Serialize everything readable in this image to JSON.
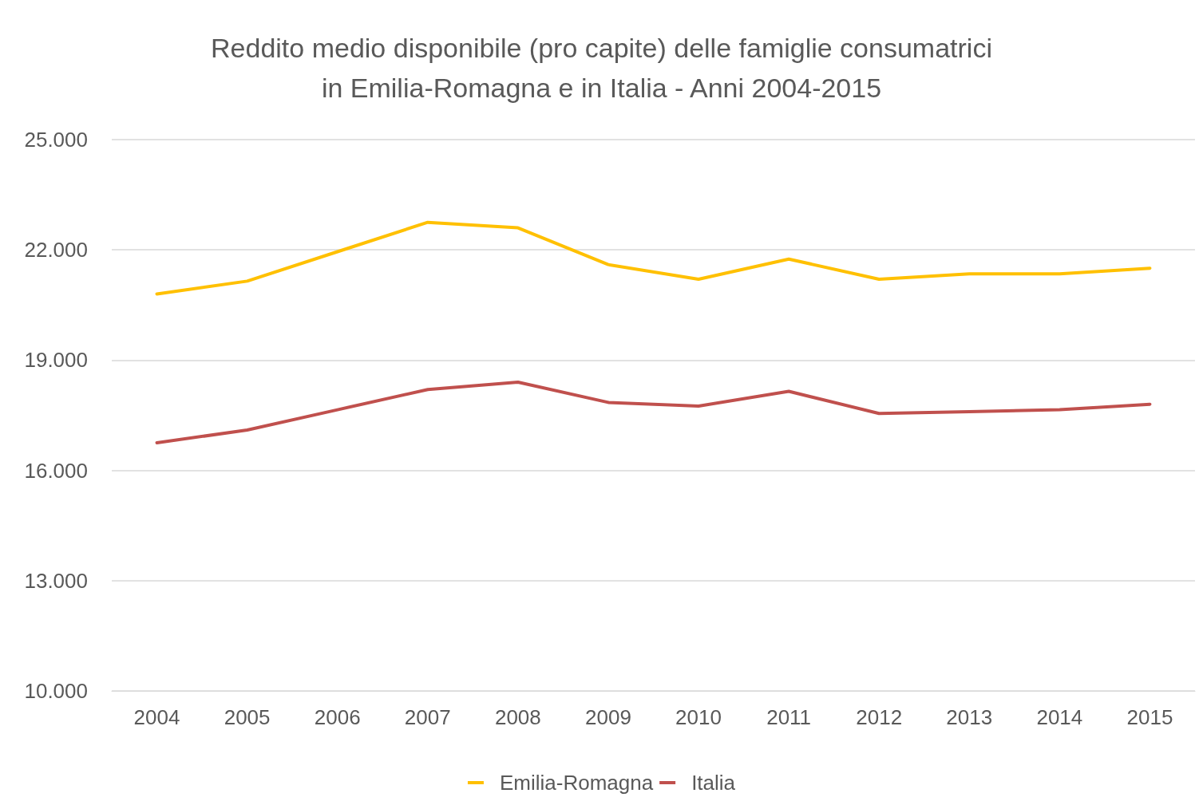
{
  "chart_data": {
    "type": "line",
    "title": "Reddito medio disponibile (pro capite) delle famiglie consumatrici\nin Emilia-Romagna e in Italia - Anni 2004-2015",
    "categories": [
      "2004",
      "2005",
      "2006",
      "2007",
      "2008",
      "2009",
      "2010",
      "2011",
      "2012",
      "2013",
      "2014",
      "2015"
    ],
    "series": [
      {
        "name": "Emilia-Romagna",
        "color": "#ffc000",
        "values": [
          20800,
          21150,
          21950,
          22750,
          22600,
          21600,
          21200,
          21750,
          21200,
          21350,
          21350,
          21500
        ]
      },
      {
        "name": "Italia",
        "color": "#c0504d",
        "values": [
          16750,
          17100,
          17650,
          18200,
          18400,
          17850,
          17750,
          18150,
          17550,
          17600,
          17650,
          17800
        ]
      }
    ],
    "ylim": [
      10000,
      25000
    ],
    "yticks": [
      {
        "value": 10000,
        "label": "10.000"
      },
      {
        "value": 13000,
        "label": "13.000"
      },
      {
        "value": 16000,
        "label": "16.000"
      },
      {
        "value": 19000,
        "label": "19.000"
      },
      {
        "value": 22000,
        "label": "22.000"
      },
      {
        "value": 25000,
        "label": "25.000"
      }
    ],
    "grid": "y",
    "legend": "bottom",
    "marker": "none",
    "line_style": "solid"
  }
}
